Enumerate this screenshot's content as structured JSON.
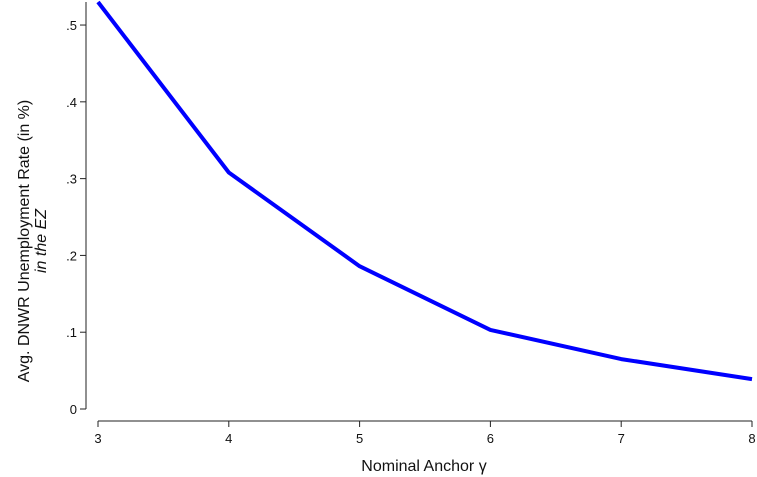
{
  "chart_data": {
    "type": "line",
    "title": "",
    "xlabel": "Nominal Anchor γ",
    "ylabel": "Avg. DNWR Unemployment Rate (in %)",
    "ylabel_line2": "in the EZ",
    "xlim": [
      3,
      8
    ],
    "ylim": [
      0,
      0.53
    ],
    "x_ticks": [
      3,
      4,
      5,
      6,
      7,
      8
    ],
    "x_tick_labels": [
      "3",
      "4",
      "5",
      "6",
      "7",
      "8"
    ],
    "y_ticks": [
      0,
      0.1,
      0.2,
      0.3,
      0.4,
      0.5
    ],
    "y_tick_labels": [
      "0",
      ".1",
      ".2",
      ".3",
      ".4",
      ".5"
    ],
    "grid": false,
    "series": [
      {
        "x": [
          3,
          4,
          5,
          6,
          7,
          8
        ],
        "values": [
          0.53,
          0.308,
          0.186,
          0.103,
          0.065,
          0.039
        ],
        "color": "#0000ff"
      }
    ]
  }
}
